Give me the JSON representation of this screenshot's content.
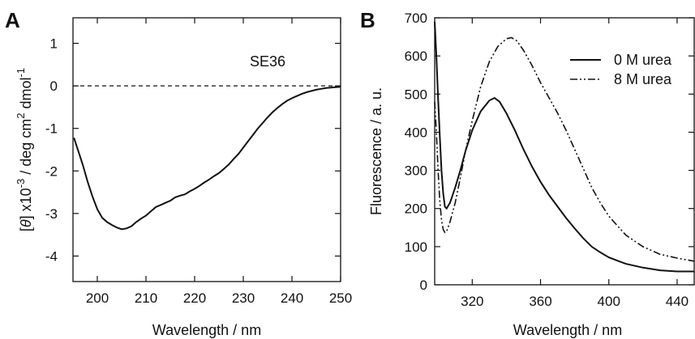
{
  "chart_data": [
    {
      "type": "line",
      "panel_label": "A",
      "annotation": "SE36",
      "xlabel": "Wavelength / nm",
      "ylabel_parts": [
        "[",
        "θ",
        "] x10",
        "-3",
        " / deg cm",
        "2",
        " dmol",
        "-1"
      ],
      "xlim": [
        195,
        250
      ],
      "ylim": [
        -4.6,
        1.6
      ],
      "xticks": [
        200,
        210,
        220,
        230,
        240,
        250
      ],
      "yticks": [
        1,
        0,
        -1,
        -2,
        -3,
        -4
      ],
      "reference_line": {
        "y": 0,
        "style": "dashed"
      },
      "series": [
        {
          "style": "solid",
          "x": [
            195.2,
            196,
            197,
            198,
            199,
            200,
            201,
            202,
            203,
            204,
            205,
            206,
            207,
            208,
            209,
            210,
            211,
            212,
            213,
            214,
            215,
            216,
            217,
            218,
            219,
            220,
            221,
            222,
            223,
            224,
            225,
            226,
            227,
            228,
            229,
            230,
            231,
            232,
            233,
            234,
            235,
            236,
            237,
            238,
            239,
            240,
            241,
            242,
            243,
            244,
            245,
            246,
            247,
            248,
            249,
            250
          ],
          "y": [
            -1.22,
            -1.5,
            -1.85,
            -2.25,
            -2.6,
            -2.9,
            -3.1,
            -3.2,
            -3.27,
            -3.33,
            -3.37,
            -3.35,
            -3.3,
            -3.2,
            -3.12,
            -3.05,
            -2.95,
            -2.85,
            -2.8,
            -2.75,
            -2.7,
            -2.62,
            -2.58,
            -2.55,
            -2.48,
            -2.42,
            -2.35,
            -2.27,
            -2.2,
            -2.12,
            -2.05,
            -1.95,
            -1.85,
            -1.72,
            -1.6,
            -1.45,
            -1.3,
            -1.15,
            -1.0,
            -0.87,
            -0.74,
            -0.62,
            -0.52,
            -0.43,
            -0.35,
            -0.29,
            -0.24,
            -0.19,
            -0.15,
            -0.12,
            -0.09,
            -0.07,
            -0.05,
            -0.04,
            -0.03,
            -0.02
          ]
        }
      ]
    },
    {
      "type": "line",
      "panel_label": "B",
      "xlabel": "Wavelength / nm",
      "ylabel": "Fluorescence / a. u.",
      "xlim": [
        298,
        450
      ],
      "ylim": [
        0,
        700
      ],
      "xticks": [
        320,
        360,
        400,
        440
      ],
      "yticks": [
        0,
        100,
        200,
        300,
        400,
        500,
        600,
        700
      ],
      "legend_position": "top-right",
      "series": [
        {
          "name": "0 M urea",
          "style": "solid",
          "x": [
            298,
            299,
            300,
            301,
            302,
            303,
            304,
            305,
            307,
            310,
            313,
            316,
            320,
            325,
            330,
            333,
            336,
            340,
            345,
            350,
            355,
            360,
            365,
            370,
            375,
            380,
            385,
            390,
            395,
            400,
            410,
            420,
            430,
            440,
            450
          ],
          "y": [
            690,
            600,
            490,
            390,
            300,
            240,
            205,
            200,
            215,
            255,
            300,
            350,
            405,
            455,
            483,
            490,
            480,
            450,
            405,
            355,
            310,
            270,
            235,
            205,
            175,
            148,
            122,
            100,
            85,
            72,
            55,
            45,
            38,
            35,
            35
          ]
        },
        {
          "name": "8 M urea",
          "style": "dash-dot-dot",
          "x": [
            298,
            299,
            300,
            301,
            302,
            303,
            304,
            305,
            307,
            310,
            313,
            316,
            320,
            325,
            330,
            335,
            340,
            343,
            346,
            350,
            355,
            360,
            365,
            370,
            375,
            380,
            385,
            390,
            395,
            400,
            410,
            420,
            430,
            440,
            450
          ],
          "y": [
            480,
            400,
            300,
            220,
            170,
            145,
            137,
            140,
            165,
            215,
            280,
            350,
            430,
            520,
            585,
            625,
            645,
            648,
            640,
            615,
            575,
            530,
            490,
            450,
            405,
            355,
            305,
            255,
            215,
            180,
            130,
            100,
            80,
            70,
            62
          ]
        }
      ]
    }
  ]
}
